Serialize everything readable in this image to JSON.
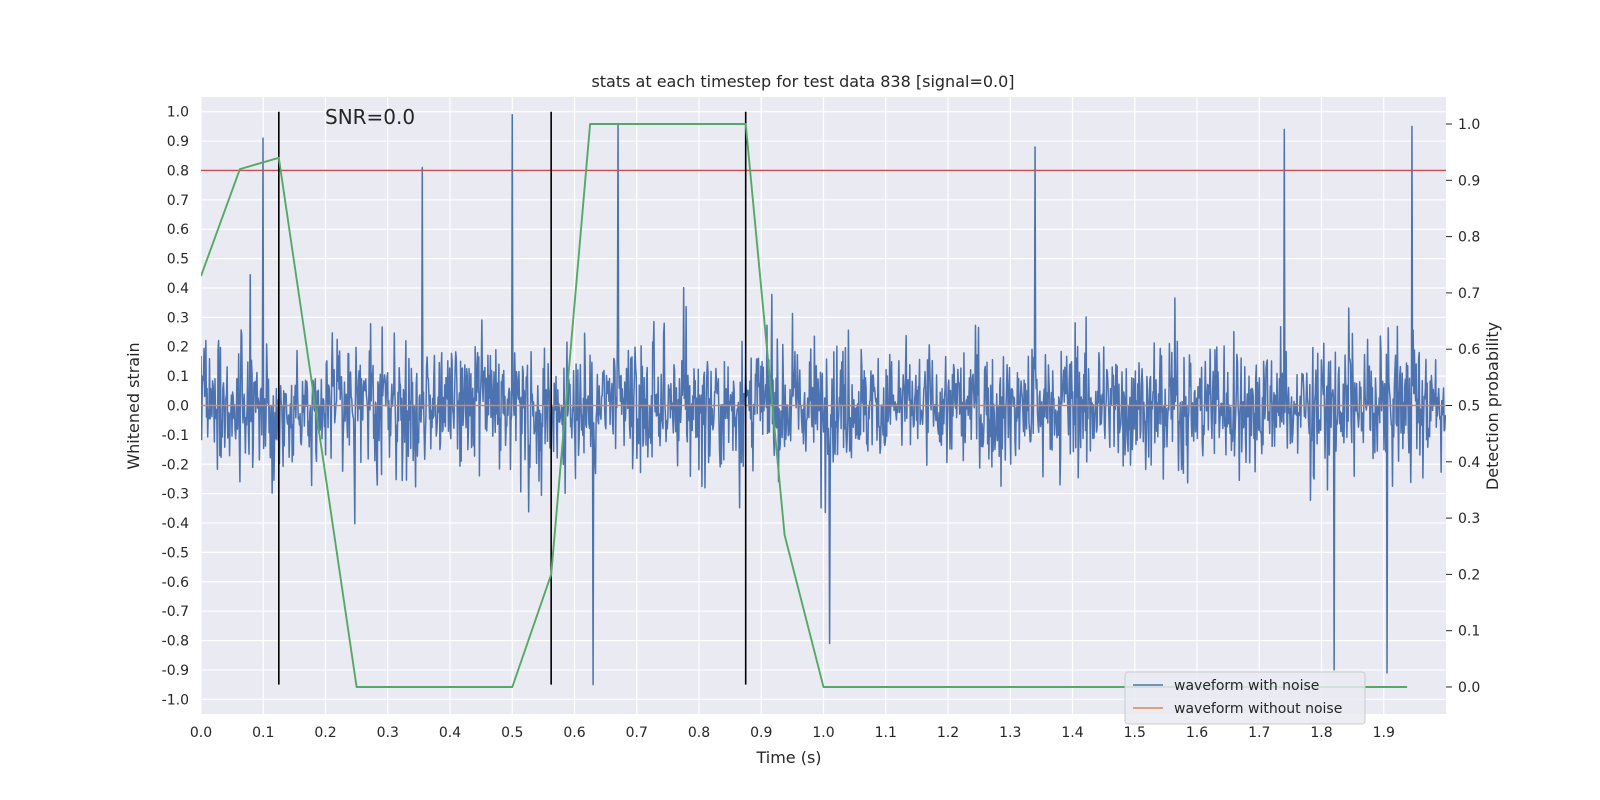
{
  "chart_data": {
    "type": "line",
    "title": "stats at each timestep for test data 838 [signal=0.0]",
    "annotation": "SNR=0.0",
    "xlabel": "Time (s)",
    "ylabel": "Whitened strain",
    "ylabel_right": "Detection probability",
    "xlim": [
      0.0,
      2.0
    ],
    "ylim": [
      -1.05,
      1.05
    ],
    "ylim_right": [
      -0.048,
      1.048
    ],
    "x_ticks": [
      "0.0",
      "0.1",
      "0.2",
      "0.3",
      "0.4",
      "0.5",
      "0.6",
      "0.7",
      "0.8",
      "0.9",
      "1.0",
      "1.1",
      "1.2",
      "1.3",
      "1.4",
      "1.5",
      "1.6",
      "1.7",
      "1.8",
      "1.9"
    ],
    "y_ticks": [
      "1.0",
      "0.9",
      "0.8",
      "0.7",
      "0.6",
      "0.5",
      "0.4",
      "0.3",
      "0.2",
      "0.1",
      "0.0",
      "-0.1",
      "-0.2",
      "-0.3",
      "-0.4",
      "-0.5",
      "-0.6",
      "-0.7",
      "-0.8",
      "-0.9",
      "-1.0"
    ],
    "y_ticks_right": [
      "1.0",
      "0.9",
      "0.8",
      "0.7",
      "0.6",
      "0.5",
      "0.4",
      "0.3",
      "0.2",
      "0.1",
      "0.0"
    ],
    "grid": true,
    "legend_position": "lower-right",
    "series": [
      {
        "name": "waveform with noise",
        "color": "#4c72b0",
        "axis": "left",
        "sample_rate": 1024,
        "amplitude_range": [
          -0.95,
          1.0
        ],
        "peaks": [
          [
            0.1,
            0.91
          ],
          [
            0.355,
            0.81
          ],
          [
            0.5,
            0.99
          ],
          [
            0.63,
            -0.95
          ],
          [
            0.67,
            0.96
          ],
          [
            1.34,
            0.88
          ],
          [
            1.74,
            0.94
          ],
          [
            1.82,
            -0.9
          ],
          [
            1.905,
            -0.91
          ],
          [
            1.945,
            0.95
          ],
          [
            1.01,
            -0.81
          ]
        ]
      },
      {
        "name": "waveform without noise",
        "color": "#dd8452",
        "axis": "left",
        "constant": 0.0
      },
      {
        "name": "",
        "color": "#55a868",
        "axis": "right",
        "x": [
          0.0,
          0.0625,
          0.125,
          0.25,
          0.5,
          0.5625,
          0.625,
          0.6875,
          0.75,
          0.875,
          0.9375,
          1.0,
          1.9375
        ],
        "values": [
          0.73,
          0.92,
          0.94,
          0.0,
          0.0,
          0.2,
          1.0,
          1.0,
          1.0,
          1.0,
          0.27,
          0.0,
          0.0
        ]
      }
    ],
    "threshold_line": {
      "value": 0.8,
      "axis": "left",
      "color": "#c44e52"
    },
    "vertical_markers": {
      "x": [
        0.125,
        0.5625,
        0.875
      ],
      "y_range": [
        -0.95,
        1.0
      ],
      "color": "#000000"
    }
  }
}
